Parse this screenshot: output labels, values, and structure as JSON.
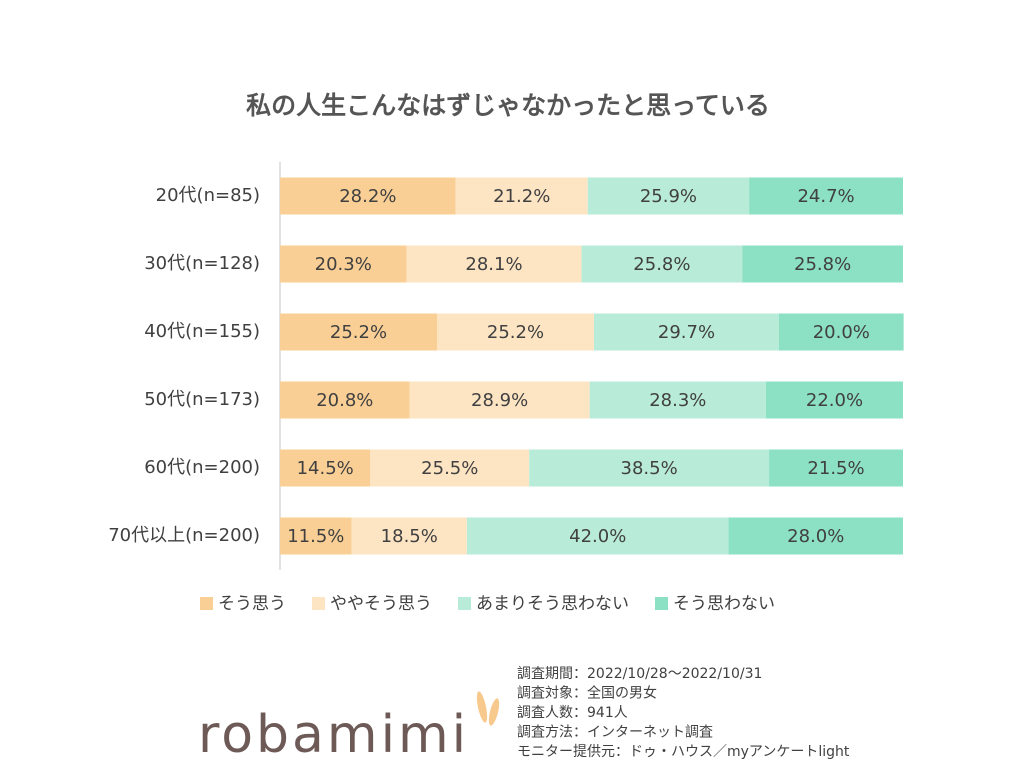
{
  "chart_data": {
    "type": "bar",
    "orientation": "horizontal",
    "stacked": true,
    "title": "私の人生こんなはずじゃなかったと思っている",
    "categories": [
      "20代(n=85)",
      "30代(n=128)",
      "40代(n=155)",
      "50代(n=173)",
      "60代(n=200)",
      "70代以上(n=200)"
    ],
    "xlim": [
      0,
      100
    ],
    "series": [
      {
        "name": "そう思う",
        "color": "#f9cf96",
        "values": [
          28.2,
          20.3,
          25.2,
          20.8,
          14.5,
          11.5
        ],
        "value_labels": [
          "28.2%",
          "20.3%",
          "25.2%",
          "20.8%",
          "14.5%",
          "11.5%"
        ]
      },
      {
        "name": "ややそう思う",
        "color": "#fde5c4",
        "values": [
          21.2,
          28.1,
          25.2,
          28.9,
          25.5,
          18.5
        ],
        "value_labels": [
          "21.2%",
          "28.1%",
          "25.2%",
          "28.9%",
          "25.5%",
          "18.5%"
        ]
      },
      {
        "name": "あまりそう思わない",
        "color": "#b9ebd9",
        "values": [
          25.9,
          25.8,
          29.7,
          28.3,
          38.5,
          42.0
        ],
        "value_labels": [
          "25.9%",
          "25.8%",
          "29.7%",
          "28.3%",
          "38.5%",
          "42.0%"
        ]
      },
      {
        "name": "そう思わない",
        "color": "#8ce0c3",
        "values": [
          24.7,
          25.8,
          20.0,
          22.0,
          21.5,
          28.0
        ],
        "value_labels": [
          "24.7%",
          "25.8%",
          "20.0%",
          "22.0%",
          "21.5%",
          "28.0%"
        ]
      }
    ],
    "legend": "bottom",
    "notes": [
      "調査期間：2022/10/28～2022/10/31",
      "調査対象：全国の男女",
      "調査人数：941人",
      "調査方法：インターネット調査",
      "モニター提供元：ドゥ・ハウス／myアンケートlight"
    ],
    "logo": "robamimi"
  }
}
